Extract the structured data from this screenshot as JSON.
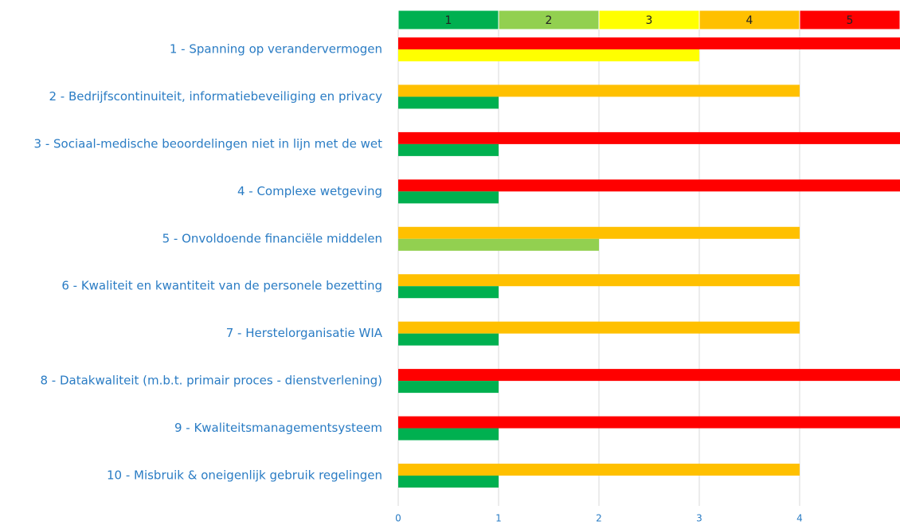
{
  "chart_data": {
    "type": "bar",
    "categories": [
      "1 - Spanning op verandervermogen",
      "2 - Bedrijfscontinuiteit, informatiebeveiliging en privacy",
      "3 - Sociaal-medische beoordelingen niet in lijn met de wet",
      "4 - Complexe wetgeving",
      "5 - Onvoldoende financiële middelen",
      "6 - Kwaliteit en kwantiteit van de personele bezetting",
      "7 - Herstelorganisatie WIA",
      "8 - Datakwaliteit (m.b.t. primair proces - dienstverlening)",
      "9 - Kwaliteitsmanagementsysteem",
      "10 - Misbruik & oneigenlijk gebruik regelingen"
    ],
    "series": [
      {
        "values": [
          5,
          4,
          5,
          5,
          4,
          4,
          4,
          5,
          5,
          4
        ]
      },
      {
        "values": [
          3,
          1,
          1,
          1,
          2,
          1,
          1,
          1,
          1,
          1
        ]
      }
    ],
    "scale": {
      "values": [
        1,
        2,
        3,
        4,
        5
      ],
      "colors": [
        "#00b050",
        "#92d050",
        "#ffff00",
        "#ffc000",
        "#ff0000"
      ]
    },
    "xlim": [
      0,
      5
    ],
    "xticks": [
      0,
      1,
      2,
      3,
      4
    ],
    "grid": true
  }
}
